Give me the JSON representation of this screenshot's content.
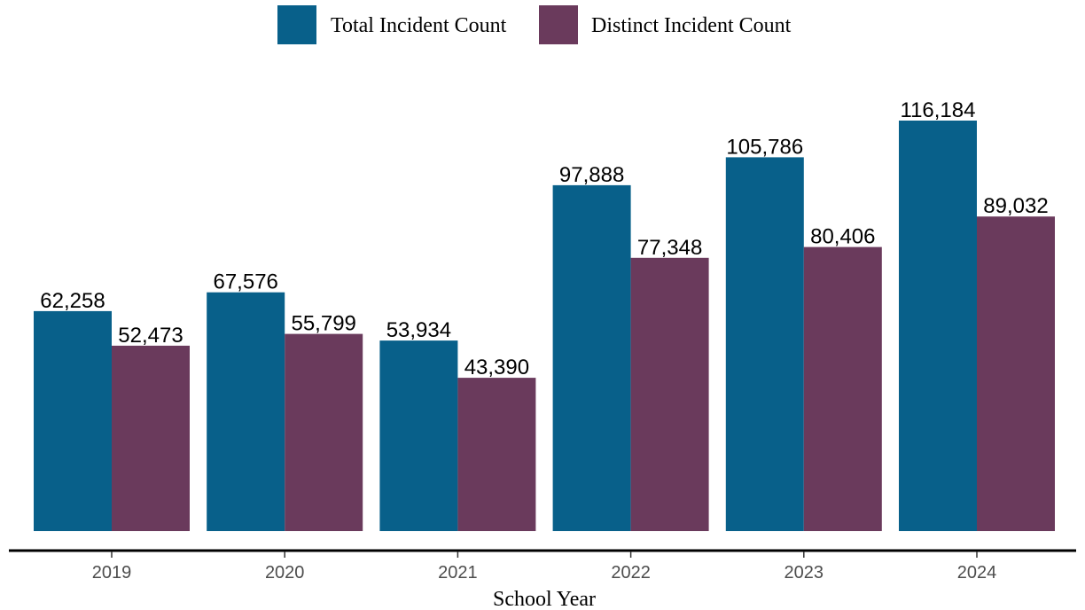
{
  "chart_data": {
    "type": "bar",
    "categories": [
      "2019",
      "2020",
      "2021",
      "2022",
      "2023",
      "2024"
    ],
    "series": [
      {
        "name": "Total Incident Count",
        "values": [
          62258,
          67576,
          53934,
          97888,
          105786,
          116184
        ],
        "labels": [
          "62,258",
          "67,576",
          "53,934",
          "97,888",
          "105,786",
          "116,184"
        ]
      },
      {
        "name": "Distinct Incident Count",
        "values": [
          52473,
          55799,
          43390,
          77348,
          80406,
          89032
        ],
        "labels": [
          "52,473",
          "55,799",
          "43,390",
          "77,348",
          "80,406",
          "89,032"
        ]
      }
    ],
    "title": "",
    "xlabel": "School Year",
    "ylabel": "",
    "ylim": [
      0,
      120000
    ],
    "grid": false,
    "legend_position": "top",
    "colors": [
      "#08608a",
      "#6a3a5c"
    ]
  }
}
